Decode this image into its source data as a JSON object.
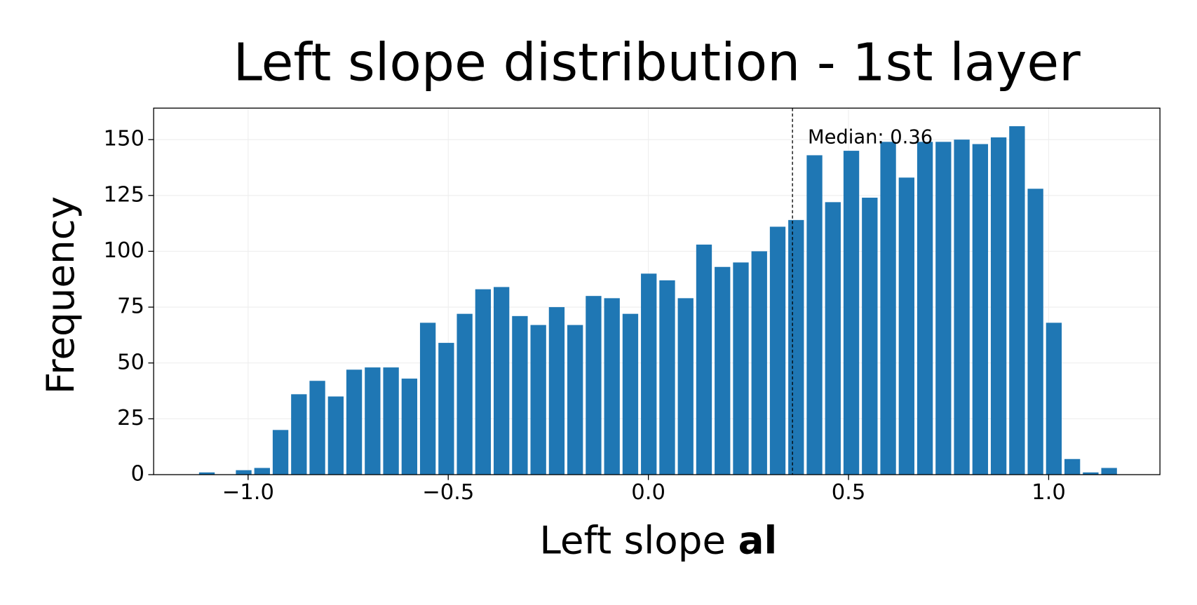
{
  "chart_data": {
    "type": "histogram",
    "title": "Left slope distribution - 1st layer",
    "xlabel": "Left slope",
    "xlabel_bold": "al",
    "ylabel": "Frequency",
    "bins": [
      -1.126,
      -1.08,
      -1.034,
      -0.988,
      -0.942,
      -0.896,
      -0.85,
      -0.804,
      -0.758,
      -0.712,
      -0.666,
      -0.62,
      -0.574,
      -0.528,
      -0.482,
      -0.436,
      -0.39,
      -0.344,
      -0.298,
      -0.252,
      -0.206,
      -0.16,
      -0.114,
      -0.068,
      -0.022,
      0.024,
      0.07,
      0.116,
      0.162,
      0.208,
      0.254,
      0.3,
      0.346,
      0.392,
      0.438,
      0.484,
      0.53,
      0.576,
      0.622,
      0.668,
      0.714,
      0.76,
      0.806,
      0.852,
      0.898,
      0.944,
      0.99,
      1.036,
      1.082,
      1.128,
      1.174
    ],
    "values": [
      1,
      0,
      2,
      3,
      20,
      36,
      42,
      35,
      47,
      48,
      48,
      43,
      68,
      59,
      72,
      83,
      84,
      71,
      67,
      75,
      67,
      80,
      79,
      72,
      90,
      87,
      79,
      103,
      93,
      95,
      100,
      111,
      114,
      143,
      122,
      145,
      124,
      149,
      133,
      149,
      149,
      150,
      148,
      151,
      156,
      128,
      68,
      7,
      1,
      3
    ],
    "color": "#1f77b4",
    "median": 0.36,
    "annotation": "Median: 0.36",
    "xlim": [
      -1.236,
      1.278
    ],
    "ylim": [
      0,
      164.1
    ],
    "xticks": [
      {
        "value": -1.0,
        "label": "−1.0"
      },
      {
        "value": -0.5,
        "label": "−0.5"
      },
      {
        "value": 0.0,
        "label": "0.0"
      },
      {
        "value": 0.5,
        "label": "0.5"
      },
      {
        "value": 1.0,
        "label": "1.0"
      }
    ],
    "yticks": [
      0,
      25,
      50,
      75,
      100,
      125,
      150
    ],
    "grid": true
  }
}
